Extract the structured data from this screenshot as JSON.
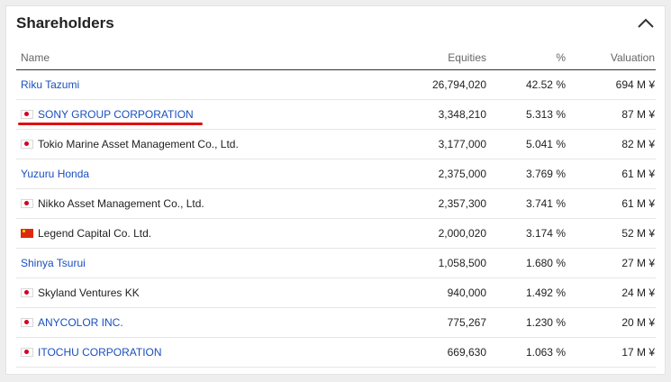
{
  "panel": {
    "title": "Shareholders",
    "collapse_icon": "chevron-up-icon"
  },
  "table": {
    "headers": {
      "name": "Name",
      "equities": "Equities",
      "percent": "%",
      "valuation": "Valuation"
    },
    "rows": [
      {
        "name": "Riku Tazumi",
        "flag": "",
        "link": true,
        "equities": "26,794,020",
        "percent": "42.52 %",
        "valuation": "694 M ¥"
      },
      {
        "name": "SONY GROUP CORPORATION",
        "flag": "jp",
        "link": true,
        "highlighted": true,
        "equities": "3,348,210",
        "percent": "5.313 %",
        "valuation": "87 M ¥"
      },
      {
        "name": "Tokio Marine Asset Management Co., Ltd.",
        "flag": "jp",
        "link": false,
        "equities": "3,177,000",
        "percent": "5.041 %",
        "valuation": "82 M ¥"
      },
      {
        "name": "Yuzuru Honda",
        "flag": "",
        "link": true,
        "equities": "2,375,000",
        "percent": "3.769 %",
        "valuation": "61 M ¥"
      },
      {
        "name": "Nikko Asset Management Co., Ltd.",
        "flag": "jp",
        "link": false,
        "equities": "2,357,300",
        "percent": "3.741 %",
        "valuation": "61 M ¥"
      },
      {
        "name": "Legend Capital Co. Ltd.",
        "flag": "cn",
        "link": false,
        "equities": "2,000,020",
        "percent": "3.174 %",
        "valuation": "52 M ¥"
      },
      {
        "name": "Shinya Tsurui",
        "flag": "",
        "link": true,
        "equities": "1,058,500",
        "percent": "1.680 %",
        "valuation": "27 M ¥"
      },
      {
        "name": "Skyland Ventures KK",
        "flag": "jp",
        "link": false,
        "equities": "940,000",
        "percent": "1.492 %",
        "valuation": "24 M ¥"
      },
      {
        "name": "ANYCOLOR INC.",
        "flag": "jp",
        "link": true,
        "equities": "775,267",
        "percent": "1.230 %",
        "valuation": "20 M ¥"
      },
      {
        "name": "ITOCHU CORPORATION",
        "flag": "jp",
        "link": true,
        "equities": "669,630",
        "percent": "1.063 %",
        "valuation": "17 M ¥"
      }
    ]
  },
  "colors": {
    "link": "#1a4fbf",
    "highlight_underline": "#e01010"
  }
}
